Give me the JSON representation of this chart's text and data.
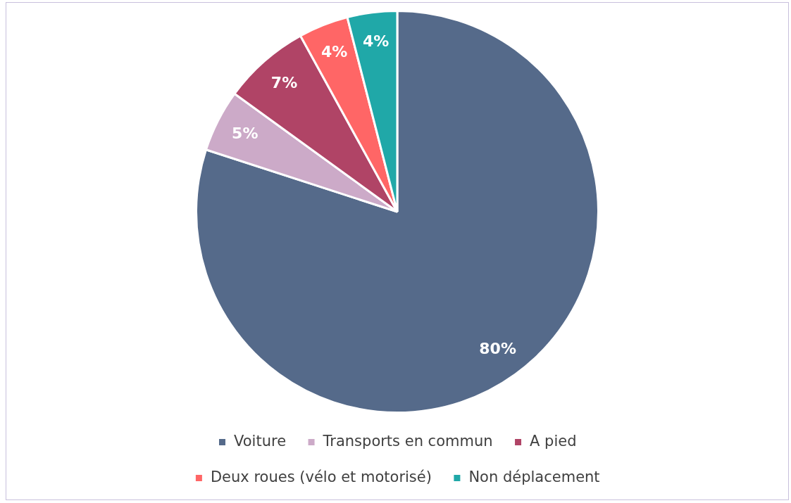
{
  "chart_data": {
    "type": "pie",
    "categories": [
      "Voiture",
      "Transports en commun",
      "A pied",
      "Deux roues (vélo et motorisé)",
      "Non déplacement"
    ],
    "values": [
      80,
      5,
      7,
      4,
      4
    ],
    "colors": [
      "#556a8a",
      "#ccaac8",
      "#b04466",
      "#ff6666",
      "#20a8a8"
    ],
    "value_labels": [
      "80%",
      "5%",
      "7%",
      "4%",
      "4%"
    ],
    "legend": "bottom"
  }
}
